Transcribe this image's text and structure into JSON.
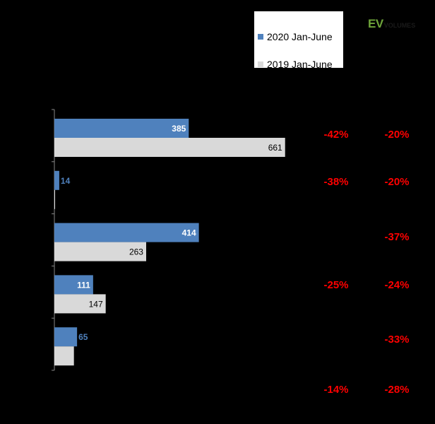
{
  "chart_data": {
    "type": "bar",
    "orientation": "horizontal",
    "series": [
      {
        "name": "2020 Jan-June",
        "values": [
          385,
          14,
          414,
          111,
          65
        ],
        "color": "#4f81bd"
      },
      {
        "name": "2019 Jan-June",
        "values": [
          661,
          2,
          263,
          147,
          56
        ],
        "color": "#d9d9d9"
      }
    ],
    "xlim": [
      0,
      700
    ],
    "grid": true,
    "legend": "top-right",
    "changes": [
      {
        "pct1": "-42%",
        "pct2": "-20%"
      },
      {
        "pct1": "-38%",
        "pct2": "-20%"
      },
      {
        "pct1": "",
        "pct2": "-37%"
      },
      {
        "pct1": "-25%",
        "pct2": "-24%"
      },
      {
        "pct1": "",
        "pct2": "-33%"
      },
      {
        "pct1": "-14%",
        "pct2": "-28%"
      }
    ],
    "change_color": "#ff0000"
  },
  "logo": {
    "ev": "EV",
    "volumes": "VOLUMES"
  }
}
